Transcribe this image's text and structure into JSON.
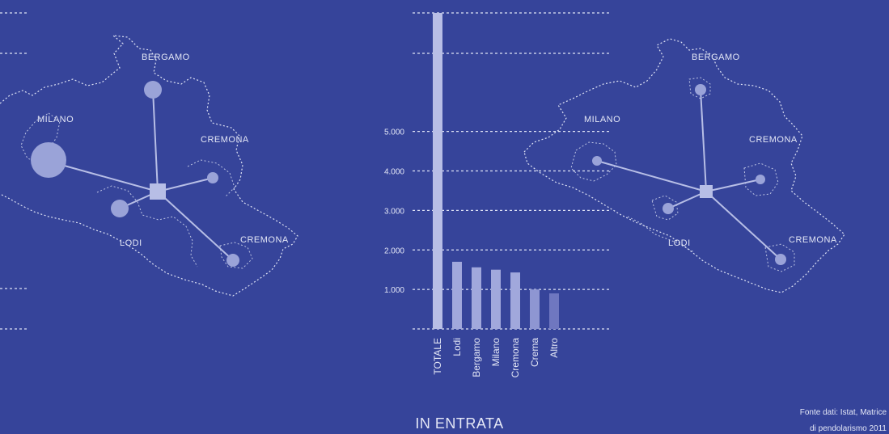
{
  "colors": {
    "background": "#36449a",
    "bars": [
      "#b8bee6",
      "#a1a8dc",
      "#a1a8dc",
      "#a1a8dc",
      "#a1a8dc",
      "#8e96d2",
      "#6f77c0"
    ],
    "lines": "#dfe3f5"
  },
  "left_map": {
    "labels": [
      "BERGAMO",
      "MILANO",
      "CREMONA",
      "LODI",
      "CREMONA"
    ]
  },
  "right_map": {
    "labels": [
      "BERGAMO",
      "MILANO",
      "CREMONA",
      "LODI",
      "CREMONA"
    ]
  },
  "chart_data": {
    "type": "bar",
    "title": "IN ENTRATA",
    "categories": [
      "TOTALE",
      "Lodi",
      "Bergamo",
      "Milano",
      "Cremona",
      "Crema",
      "Altro"
    ],
    "values": [
      8000,
      1700,
      1560,
      1500,
      1430,
      1000,
      900
    ],
    "yticks": [
      {
        "value": 1000,
        "label": "1.000"
      },
      {
        "value": 2000,
        "label": "2.000"
      },
      {
        "value": 3000,
        "label": "3.000"
      },
      {
        "value": 4000,
        "label": "4.000"
      },
      {
        "value": 5000,
        "label": "5.000"
      }
    ],
    "ylim": [
      0,
      8000
    ],
    "grid": true
  },
  "source": {
    "line1": "Fonte dati: Istat, Matrice",
    "line2": "di pendolarismo 2011"
  }
}
